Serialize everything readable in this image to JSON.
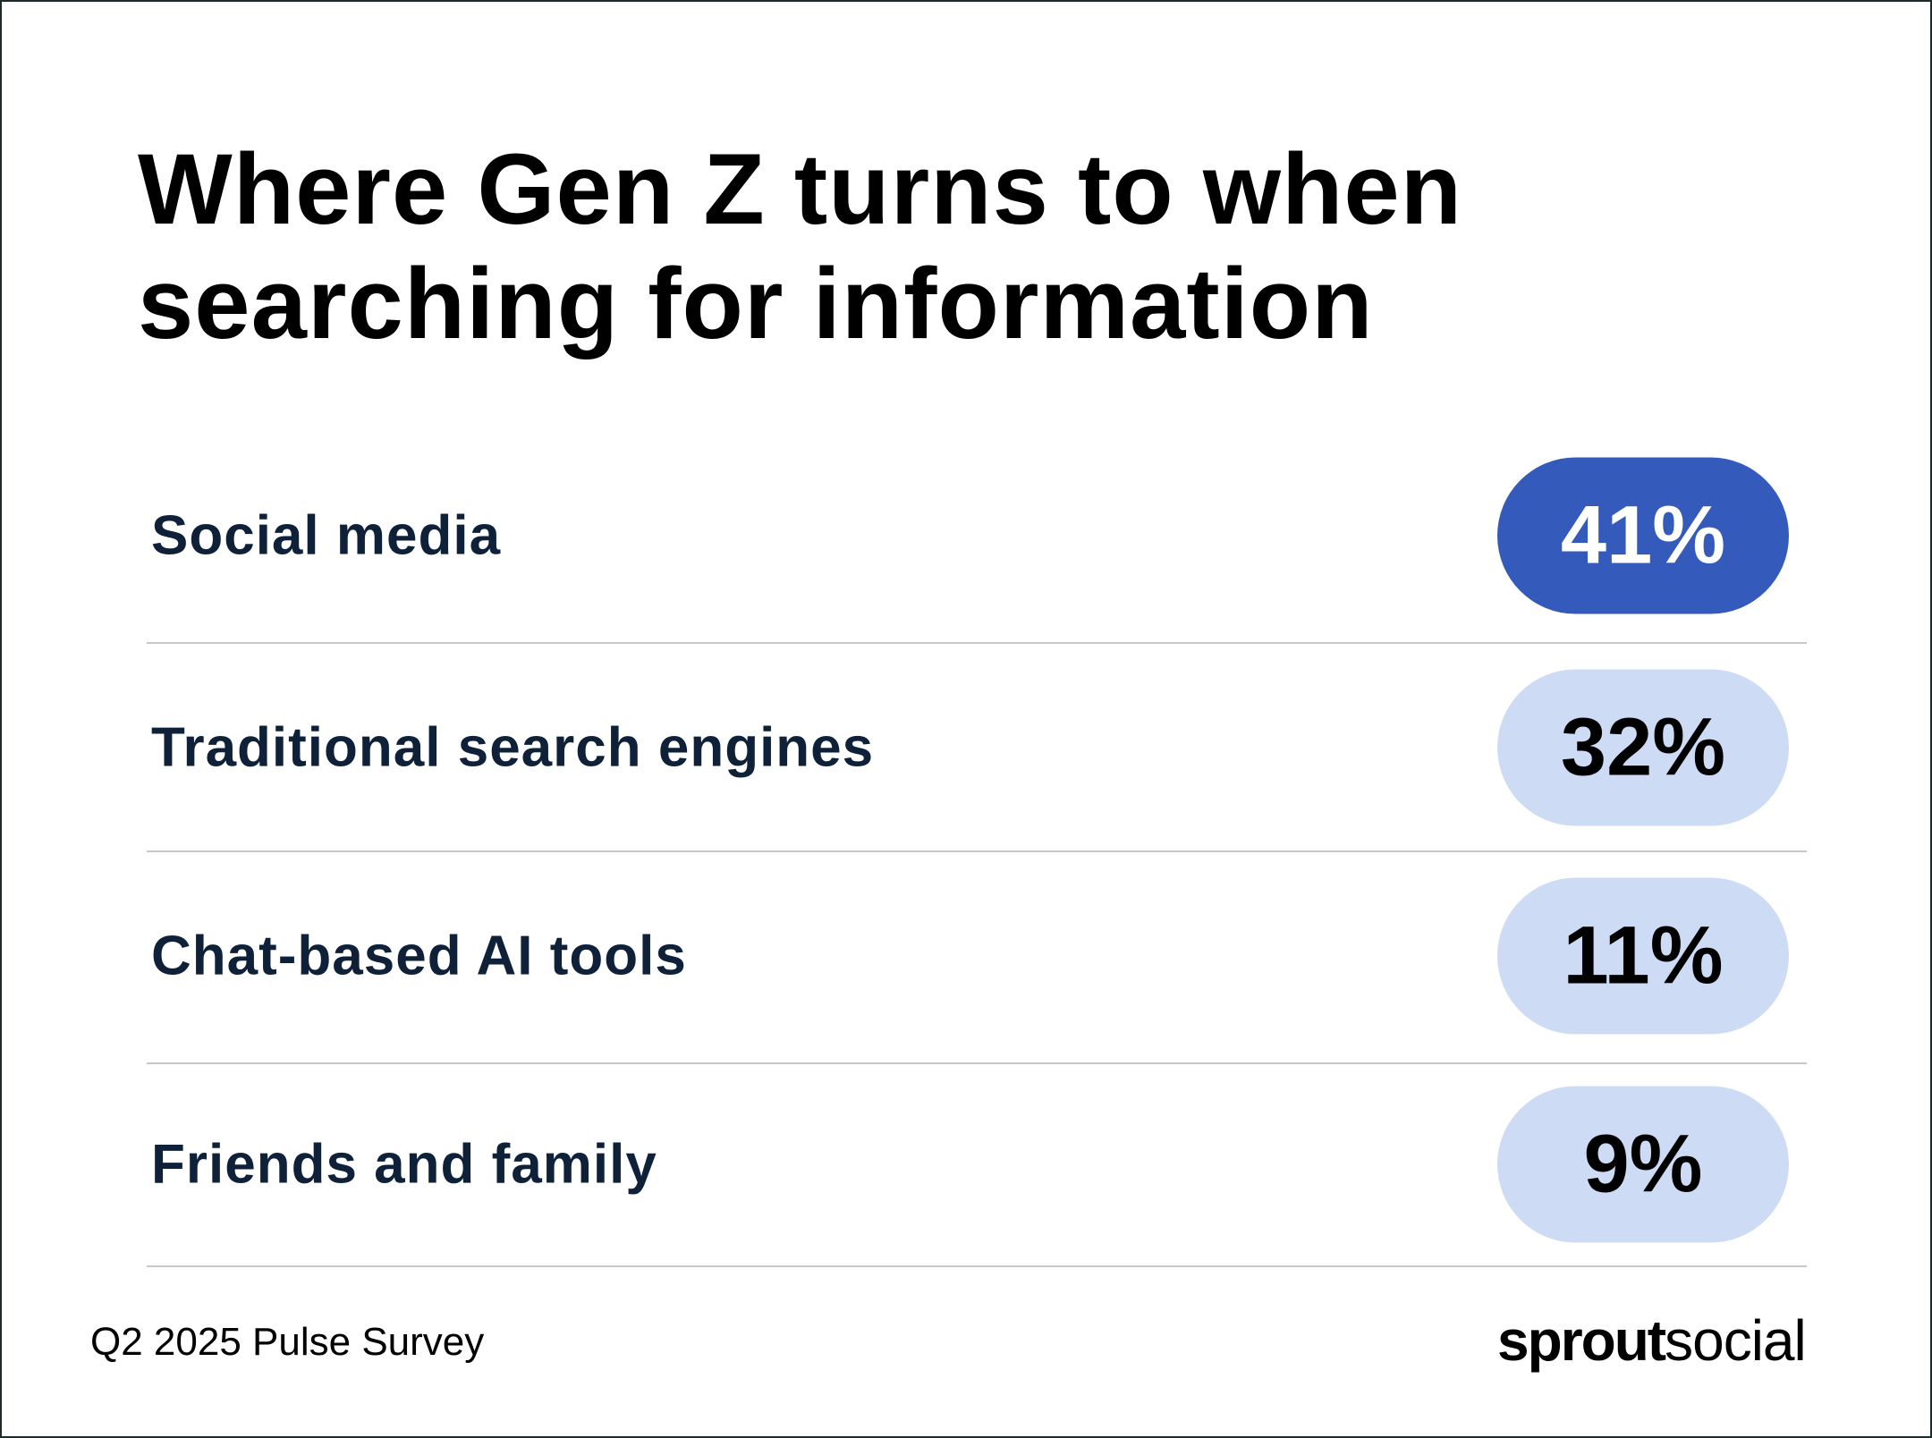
{
  "chart_data": {
    "type": "table",
    "title": "Where Gen Z turns to when searching for information",
    "categories": [
      "Social media",
      "Traditional search engines",
      "Chat-based AI tools",
      "Friends and family"
    ],
    "values": [
      41,
      32,
      11,
      9
    ],
    "value_labels": [
      "41%",
      "32%",
      "11%",
      "9%"
    ],
    "unit": "%",
    "highlight_color": "#345bbb",
    "base_color": "#cddcf4"
  },
  "footer": {
    "source": "Q2 2025 Pulse Survey"
  },
  "logo": {
    "part1": "sprout",
    "part2": "social"
  }
}
